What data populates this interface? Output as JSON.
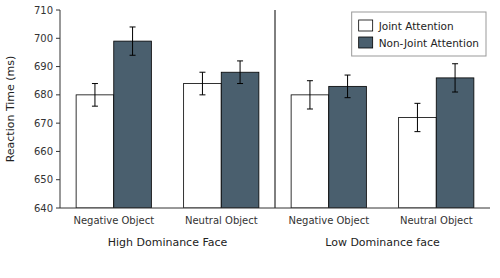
{
  "chart_data": {
    "type": "bar",
    "ylabel": "Reaction Time (ms)",
    "categories": [
      "Negative Object",
      "Neutral Object",
      "Negative Object",
      "Neutral Object"
    ],
    "annotations": [
      "High Dominance Face",
      "Low Dominance face"
    ],
    "series": [
      {
        "name": "Joint Attention",
        "color": "#FFFFFF",
        "values": [
          680,
          684,
          680,
          672
        ],
        "errors": [
          4,
          4,
          5,
          5
        ]
      },
      {
        "name": "Non-Joint Attention",
        "color": "#4A5F6E",
        "values": [
          699,
          688,
          683,
          686
        ],
        "errors": [
          5,
          4,
          4,
          5
        ]
      }
    ],
    "ylim": [
      640,
      710
    ],
    "yticks": [
      640,
      650,
      660,
      670,
      680,
      690,
      700,
      710
    ],
    "legend": "upper right",
    "grid": false
  }
}
